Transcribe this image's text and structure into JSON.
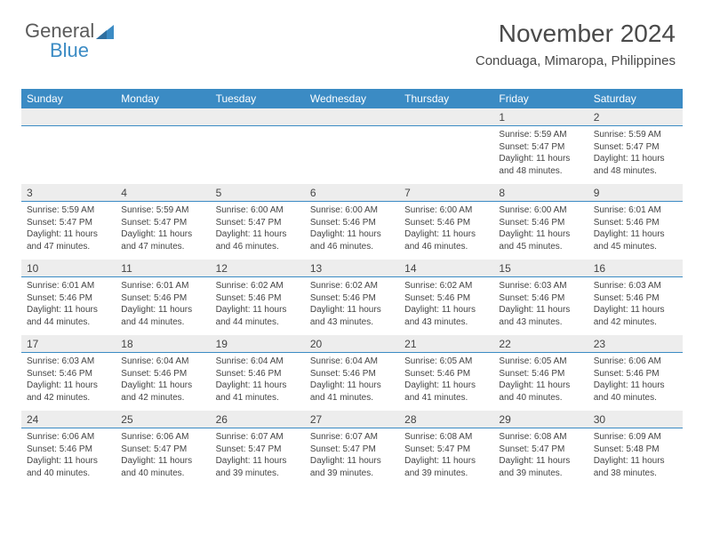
{
  "brand": {
    "line1": "General",
    "line2": "Blue",
    "color_gray": "#5a5a5a",
    "color_blue": "#3b8bc4"
  },
  "title": {
    "month": "November 2024",
    "location": "Conduaga, Mimaropa, Philippines"
  },
  "calendar": {
    "header_bg": "#3b8bc4",
    "header_fg": "#ffffff",
    "daynum_bg": "#ededed",
    "daynum_border": "#3b8bc4",
    "text_color": "#444444",
    "font_family": "Arial",
    "header_fontsize": 12,
    "cell_fontsize": 10,
    "headers": [
      "Sunday",
      "Monday",
      "Tuesday",
      "Wednesday",
      "Thursday",
      "Friday",
      "Saturday"
    ],
    "weeks": [
      [
        {
          "n": "",
          "lines": []
        },
        {
          "n": "",
          "lines": []
        },
        {
          "n": "",
          "lines": []
        },
        {
          "n": "",
          "lines": []
        },
        {
          "n": "",
          "lines": []
        },
        {
          "n": "1",
          "lines": [
            "Sunrise: 5:59 AM",
            "Sunset: 5:47 PM",
            "Daylight: 11 hours",
            "and 48 minutes."
          ]
        },
        {
          "n": "2",
          "lines": [
            "Sunrise: 5:59 AM",
            "Sunset: 5:47 PM",
            "Daylight: 11 hours",
            "and 48 minutes."
          ]
        }
      ],
      [
        {
          "n": "3",
          "lines": [
            "Sunrise: 5:59 AM",
            "Sunset: 5:47 PM",
            "Daylight: 11 hours",
            "and 47 minutes."
          ]
        },
        {
          "n": "4",
          "lines": [
            "Sunrise: 5:59 AM",
            "Sunset: 5:47 PM",
            "Daylight: 11 hours",
            "and 47 minutes."
          ]
        },
        {
          "n": "5",
          "lines": [
            "Sunrise: 6:00 AM",
            "Sunset: 5:47 PM",
            "Daylight: 11 hours",
            "and 46 minutes."
          ]
        },
        {
          "n": "6",
          "lines": [
            "Sunrise: 6:00 AM",
            "Sunset: 5:46 PM",
            "Daylight: 11 hours",
            "and 46 minutes."
          ]
        },
        {
          "n": "7",
          "lines": [
            "Sunrise: 6:00 AM",
            "Sunset: 5:46 PM",
            "Daylight: 11 hours",
            "and 46 minutes."
          ]
        },
        {
          "n": "8",
          "lines": [
            "Sunrise: 6:00 AM",
            "Sunset: 5:46 PM",
            "Daylight: 11 hours",
            "and 45 minutes."
          ]
        },
        {
          "n": "9",
          "lines": [
            "Sunrise: 6:01 AM",
            "Sunset: 5:46 PM",
            "Daylight: 11 hours",
            "and 45 minutes."
          ]
        }
      ],
      [
        {
          "n": "10",
          "lines": [
            "Sunrise: 6:01 AM",
            "Sunset: 5:46 PM",
            "Daylight: 11 hours",
            "and 44 minutes."
          ]
        },
        {
          "n": "11",
          "lines": [
            "Sunrise: 6:01 AM",
            "Sunset: 5:46 PM",
            "Daylight: 11 hours",
            "and 44 minutes."
          ]
        },
        {
          "n": "12",
          "lines": [
            "Sunrise: 6:02 AM",
            "Sunset: 5:46 PM",
            "Daylight: 11 hours",
            "and 44 minutes."
          ]
        },
        {
          "n": "13",
          "lines": [
            "Sunrise: 6:02 AM",
            "Sunset: 5:46 PM",
            "Daylight: 11 hours",
            "and 43 minutes."
          ]
        },
        {
          "n": "14",
          "lines": [
            "Sunrise: 6:02 AM",
            "Sunset: 5:46 PM",
            "Daylight: 11 hours",
            "and 43 minutes."
          ]
        },
        {
          "n": "15",
          "lines": [
            "Sunrise: 6:03 AM",
            "Sunset: 5:46 PM",
            "Daylight: 11 hours",
            "and 43 minutes."
          ]
        },
        {
          "n": "16",
          "lines": [
            "Sunrise: 6:03 AM",
            "Sunset: 5:46 PM",
            "Daylight: 11 hours",
            "and 42 minutes."
          ]
        }
      ],
      [
        {
          "n": "17",
          "lines": [
            "Sunrise: 6:03 AM",
            "Sunset: 5:46 PM",
            "Daylight: 11 hours",
            "and 42 minutes."
          ]
        },
        {
          "n": "18",
          "lines": [
            "Sunrise: 6:04 AM",
            "Sunset: 5:46 PM",
            "Daylight: 11 hours",
            "and 42 minutes."
          ]
        },
        {
          "n": "19",
          "lines": [
            "Sunrise: 6:04 AM",
            "Sunset: 5:46 PM",
            "Daylight: 11 hours",
            "and 41 minutes."
          ]
        },
        {
          "n": "20",
          "lines": [
            "Sunrise: 6:04 AM",
            "Sunset: 5:46 PM",
            "Daylight: 11 hours",
            "and 41 minutes."
          ]
        },
        {
          "n": "21",
          "lines": [
            "Sunrise: 6:05 AM",
            "Sunset: 5:46 PM",
            "Daylight: 11 hours",
            "and 41 minutes."
          ]
        },
        {
          "n": "22",
          "lines": [
            "Sunrise: 6:05 AM",
            "Sunset: 5:46 PM",
            "Daylight: 11 hours",
            "and 40 minutes."
          ]
        },
        {
          "n": "23",
          "lines": [
            "Sunrise: 6:06 AM",
            "Sunset: 5:46 PM",
            "Daylight: 11 hours",
            "and 40 minutes."
          ]
        }
      ],
      [
        {
          "n": "24",
          "lines": [
            "Sunrise: 6:06 AM",
            "Sunset: 5:46 PM",
            "Daylight: 11 hours",
            "and 40 minutes."
          ]
        },
        {
          "n": "25",
          "lines": [
            "Sunrise: 6:06 AM",
            "Sunset: 5:47 PM",
            "Daylight: 11 hours",
            "and 40 minutes."
          ]
        },
        {
          "n": "26",
          "lines": [
            "Sunrise: 6:07 AM",
            "Sunset: 5:47 PM",
            "Daylight: 11 hours",
            "and 39 minutes."
          ]
        },
        {
          "n": "27",
          "lines": [
            "Sunrise: 6:07 AM",
            "Sunset: 5:47 PM",
            "Daylight: 11 hours",
            "and 39 minutes."
          ]
        },
        {
          "n": "28",
          "lines": [
            "Sunrise: 6:08 AM",
            "Sunset: 5:47 PM",
            "Daylight: 11 hours",
            "and 39 minutes."
          ]
        },
        {
          "n": "29",
          "lines": [
            "Sunrise: 6:08 AM",
            "Sunset: 5:47 PM",
            "Daylight: 11 hours",
            "and 39 minutes."
          ]
        },
        {
          "n": "30",
          "lines": [
            "Sunrise: 6:09 AM",
            "Sunset: 5:48 PM",
            "Daylight: 11 hours",
            "and 38 minutes."
          ]
        }
      ]
    ]
  }
}
